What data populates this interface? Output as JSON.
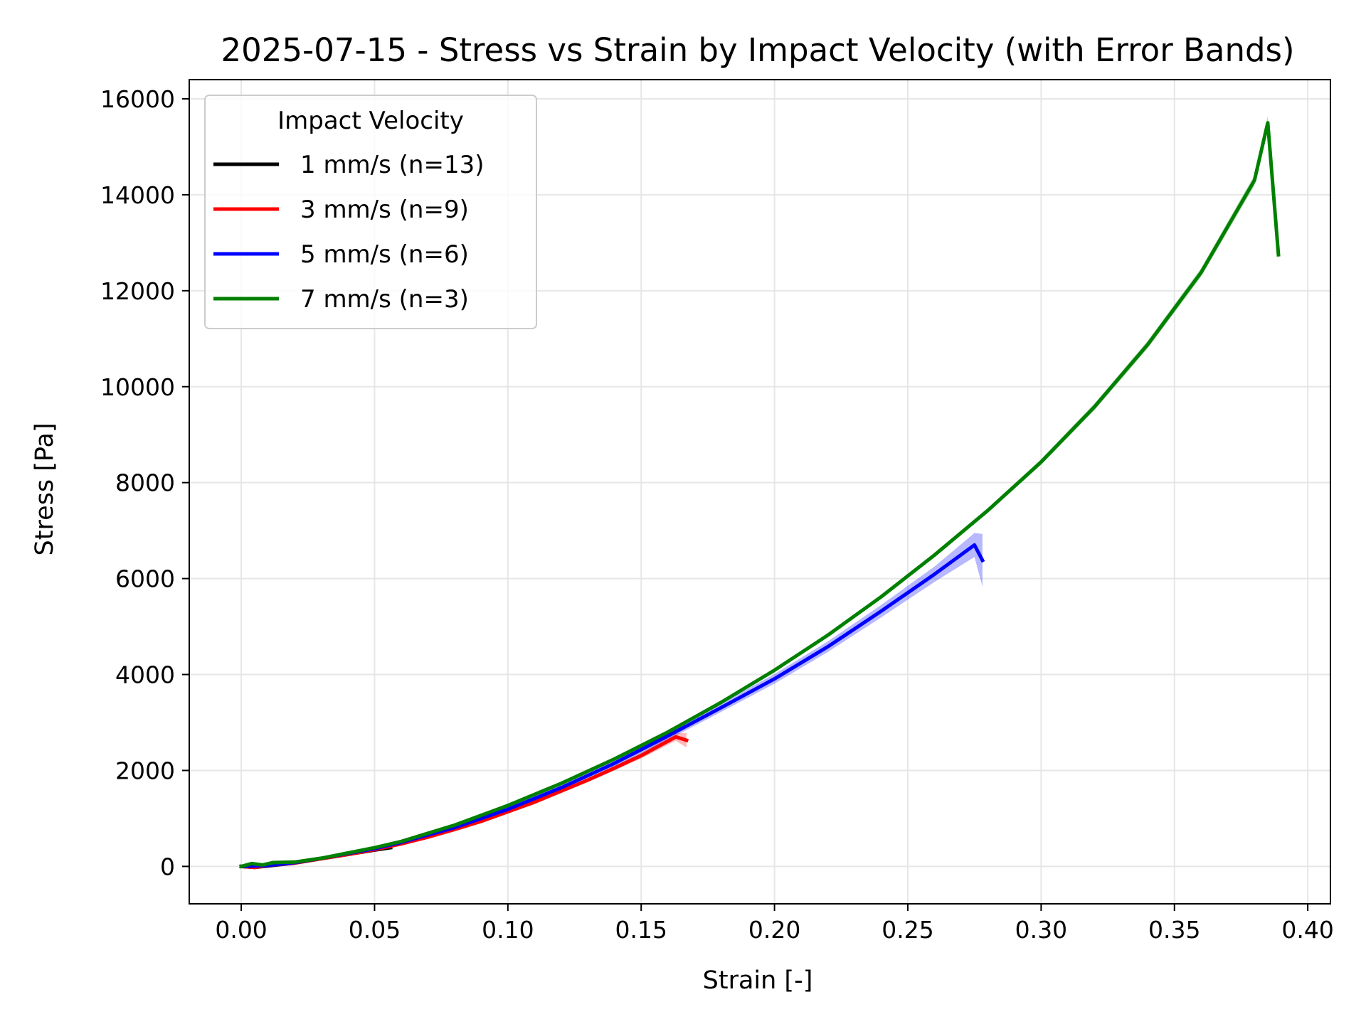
{
  "chart_data": {
    "type": "line",
    "title": "2025-07-15 - Stress vs Strain by Impact Velocity (with Error Bands)",
    "xlabel": "Strain [-]",
    "ylabel": "Stress [Pa]",
    "xlim": [
      -0.0195,
      0.4085
    ],
    "ylim": [
      -780,
      16400
    ],
    "xticks": [
      0.0,
      0.05,
      0.1,
      0.15,
      0.2,
      0.25,
      0.3,
      0.35,
      0.4
    ],
    "xtick_labels": [
      "0.00",
      "0.05",
      "0.10",
      "0.15",
      "0.20",
      "0.25",
      "0.30",
      "0.35",
      "0.40"
    ],
    "yticks": [
      0,
      2000,
      4000,
      6000,
      8000,
      10000,
      12000,
      14000,
      16000
    ],
    "ytick_labels": [
      "0",
      "2000",
      "4000",
      "6000",
      "8000",
      "10000",
      "12000",
      "14000",
      "16000"
    ],
    "grid": true,
    "legend": {
      "title": "Impact Velocity",
      "placement": "top-left"
    },
    "series": [
      {
        "name": "1 mm/s (n=13)",
        "color": "#000000",
        "x": [
          0.0,
          0.005,
          0.01,
          0.02,
          0.03,
          0.04,
          0.05,
          0.056
        ],
        "y": [
          0,
          -20,
          10,
          70,
          160,
          250,
          340,
          390
        ],
        "err": [
          20,
          20,
          20,
          20,
          20,
          20,
          20,
          20
        ]
      },
      {
        "name": "3 mm/s (n=9)",
        "color": "#ff0000",
        "x": [
          0.0,
          0.005,
          0.01,
          0.02,
          0.03,
          0.04,
          0.05,
          0.06,
          0.07,
          0.08,
          0.09,
          0.1,
          0.11,
          0.12,
          0.13,
          0.14,
          0.15,
          0.163,
          0.167
        ],
        "y": [
          0,
          -20,
          20,
          70,
          160,
          250,
          350,
          470,
          610,
          770,
          940,
          1140,
          1340,
          1570,
          1800,
          2050,
          2310,
          2700,
          2630
        ],
        "err": [
          20,
          20,
          20,
          20,
          20,
          20,
          20,
          20,
          20,
          20,
          30,
          30,
          30,
          40,
          40,
          50,
          60,
          80,
          150
        ]
      },
      {
        "name": "5 mm/s (n=6)",
        "color": "#0000ff",
        "x": [
          0.0,
          0.005,
          0.01,
          0.02,
          0.03,
          0.04,
          0.05,
          0.06,
          0.08,
          0.1,
          0.12,
          0.14,
          0.16,
          0.18,
          0.2,
          0.22,
          0.24,
          0.26,
          0.275,
          0.278
        ],
        "y": [
          0,
          10,
          20,
          80,
          170,
          270,
          370,
          500,
          810,
          1190,
          1640,
          2150,
          2720,
          3310,
          3910,
          4580,
          5320,
          6090,
          6700,
          6380
        ],
        "err": [
          20,
          20,
          20,
          20,
          20,
          20,
          20,
          30,
          40,
          50,
          60,
          70,
          80,
          90,
          100,
          110,
          130,
          160,
          250,
          550
        ]
      },
      {
        "name": "7 mm/s (n=3)",
        "color": "#008000",
        "x": [
          0.0,
          0.004,
          0.008,
          0.012,
          0.02,
          0.03,
          0.04,
          0.05,
          0.06,
          0.08,
          0.1,
          0.12,
          0.14,
          0.16,
          0.18,
          0.2,
          0.22,
          0.24,
          0.26,
          0.28,
          0.3,
          0.32,
          0.34,
          0.36,
          0.38,
          0.385,
          0.389
        ],
        "y": [
          0,
          60,
          30,
          80,
          90,
          170,
          280,
          390,
          520,
          860,
          1270,
          1730,
          2240,
          2800,
          3420,
          4090,
          4820,
          5620,
          6490,
          7420,
          8430,
          9580,
          10880,
          12380,
          14300,
          15500,
          12750
        ],
        "err": [
          20,
          20,
          20,
          20,
          20,
          20,
          20,
          20,
          20,
          20,
          20,
          30,
          30,
          30,
          30,
          40,
          40,
          40,
          50,
          50,
          60,
          70,
          80,
          90,
          110,
          140,
          150
        ]
      }
    ]
  }
}
